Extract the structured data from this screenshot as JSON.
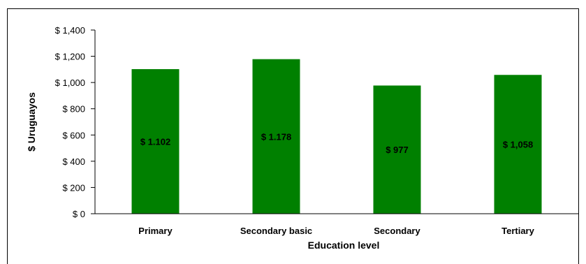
{
  "chart_data": {
    "type": "bar",
    "categories": [
      "Primary",
      "Secondary basic",
      "Secondary",
      "Tertiary"
    ],
    "values": [
      1102,
      1178,
      977,
      1058
    ],
    "data_labels": [
      "$ 1.102",
      "$ 1.178",
      "$ 977",
      "$ 1,058"
    ],
    "title": "",
    "xlabel": "Education level",
    "ylabel": "$ Uruguayos",
    "ylim": [
      0,
      1400
    ],
    "y_ticks": [
      0,
      200,
      400,
      600,
      800,
      1000,
      1200,
      1400
    ],
    "y_tick_labels": [
      "$ 0",
      "$ 200",
      "$ 400",
      "$ 600",
      "$ 800",
      "$ 1,000",
      "$ 1,200",
      "$ 1,400"
    ],
    "bar_color": "#008000",
    "grid": false,
    "legend": "none"
  }
}
